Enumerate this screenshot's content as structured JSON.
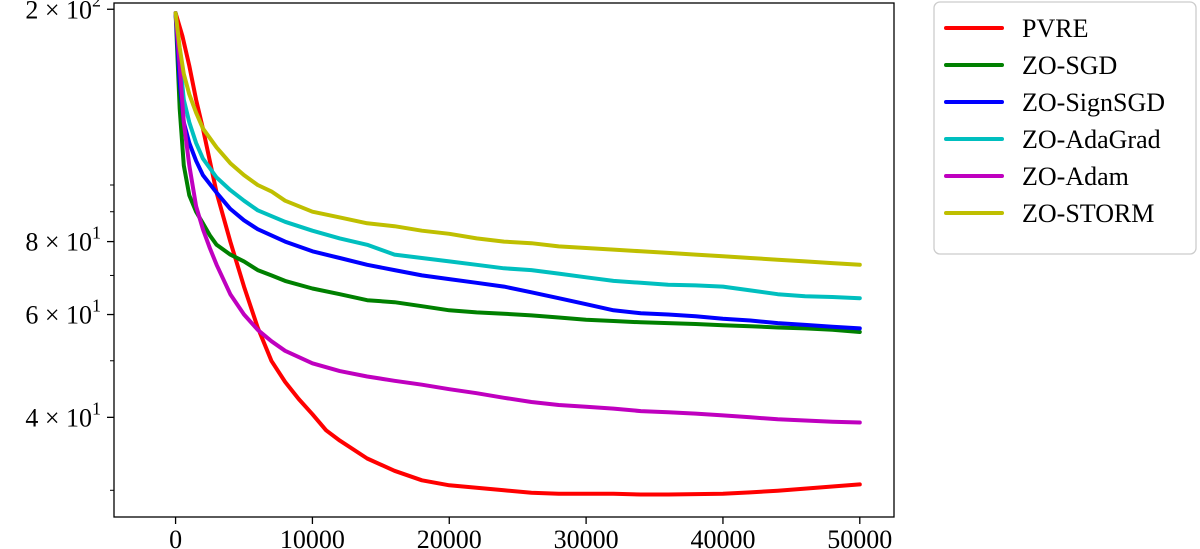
{
  "chart_data": {
    "type": "line",
    "title": "",
    "xlabel": "",
    "ylabel": "",
    "xlim": [
      -4500,
      52500
    ],
    "ylim": [
      27,
      205
    ],
    "yscale": "log",
    "grid": false,
    "legend_position": "outside-right-top",
    "x_ticks": [
      0,
      10000,
      20000,
      30000,
      40000,
      50000
    ],
    "x_tick_labels": [
      "0",
      "10000",
      "20000",
      "30000",
      "40000",
      "50000"
    ],
    "y_major_ticks": [
      {
        "value": 200,
        "base": "2",
        "exp": "2"
      },
      {
        "value": 80,
        "base": "8",
        "exp": "1"
      },
      {
        "value": 60,
        "base": "6",
        "exp": "1"
      },
      {
        "value": 40,
        "base": "4",
        "exp": "1"
      }
    ],
    "y_minor_ticks": [
      30,
      50,
      70,
      90,
      100
    ],
    "series": [
      {
        "name": "PVRE",
        "color": "#ff0000",
        "x": [
          0,
          500,
          1000,
          1500,
          2000,
          2500,
          3000,
          4000,
          5000,
          6000,
          7000,
          8000,
          9000,
          10000,
          11000,
          12000,
          14000,
          16000,
          18000,
          20000,
          22000,
          24000,
          26000,
          28000,
          30000,
          32000,
          34000,
          36000,
          38000,
          40000,
          42000,
          44000,
          46000,
          48000,
          50000
        ],
        "y": [
          197,
          180,
          160,
          140,
          125,
          110,
          97,
          80,
          67,
          57,
          50,
          46,
          43,
          40.5,
          38,
          36.5,
          34,
          32.4,
          31.2,
          30.6,
          30.3,
          30,
          29.7,
          29.6,
          29.6,
          29.6,
          29.5,
          29.5,
          29.55,
          29.6,
          29.75,
          29.95,
          30.2,
          30.45,
          30.7
        ]
      },
      {
        "name": "ZO-SGD",
        "color": "#008000",
        "x": [
          0,
          300,
          600,
          1000,
          1500,
          2000,
          2500,
          3000,
          4000,
          5000,
          6000,
          7000,
          8000,
          10000,
          12000,
          14000,
          16000,
          18000,
          20000,
          22000,
          24000,
          26000,
          28000,
          30000,
          32000,
          34000,
          36000,
          38000,
          40000,
          42000,
          44000,
          46000,
          48000,
          50000
        ],
        "y": [
          197,
          135,
          108,
          96,
          90,
          86,
          82,
          79,
          76,
          74,
          71.5,
          70,
          68.5,
          66.5,
          65,
          63.5,
          63,
          62,
          61,
          60.5,
          60.2,
          59.8,
          59.3,
          58.8,
          58.5,
          58.2,
          58,
          57.8,
          57.5,
          57.3,
          57,
          56.8,
          56.5,
          56
        ]
      },
      {
        "name": "ZO-SignSGD",
        "color": "#0000ff",
        "x": [
          0,
          300,
          600,
          1000,
          1500,
          2000,
          3000,
          4000,
          5000,
          6000,
          8000,
          10000,
          12000,
          14000,
          16000,
          18000,
          20000,
          22000,
          24000,
          26000,
          28000,
          30000,
          32000,
          34000,
          36000,
          38000,
          40000,
          42000,
          44000,
          46000,
          48000,
          50000
        ],
        "y": [
          197,
          150,
          128,
          118,
          110,
          104,
          97,
          91,
          87,
          84,
          80,
          77,
          75,
          73,
          71.5,
          70,
          69,
          68,
          67,
          65.5,
          64,
          62.5,
          61,
          60.3,
          60,
          59.6,
          59,
          58.6,
          58,
          57.6,
          57.2,
          56.8
        ]
      },
      {
        "name": "ZO-AdaGrad",
        "color": "#00bfbf",
        "x": [
          0,
          300,
          600,
          1000,
          1500,
          2000,
          3000,
          4000,
          5000,
          6000,
          8000,
          10000,
          12000,
          14000,
          16000,
          18000,
          20000,
          22000,
          24000,
          26000,
          28000,
          30000,
          32000,
          34000,
          36000,
          38000,
          40000,
          42000,
          44000,
          46000,
          48000,
          50000
        ],
        "y": [
          197,
          165,
          140,
          128,
          118,
          111,
          103,
          98,
          94,
          90.5,
          86.5,
          83.5,
          81,
          79,
          76,
          75,
          74,
          73,
          72,
          71.5,
          70.5,
          69.5,
          68.5,
          68,
          67.5,
          67.3,
          67,
          66,
          65,
          64.5,
          64.3,
          64
        ]
      },
      {
        "name": "ZO-Adam",
        "color": "#bf00bf",
        "x": [
          0,
          300,
          600,
          1000,
          1500,
          2000,
          2500,
          3000,
          4000,
          5000,
          6000,
          7000,
          8000,
          10000,
          12000,
          14000,
          16000,
          18000,
          20000,
          22000,
          24000,
          26000,
          28000,
          30000,
          32000,
          34000,
          36000,
          38000,
          40000,
          42000,
          44000,
          46000,
          48000,
          50000
        ],
        "y": [
          197,
          160,
          128,
          108,
          92,
          84,
          78,
          73,
          65,
          60,
          56.5,
          54,
          52,
          49.5,
          48,
          47,
          46.2,
          45.5,
          44.7,
          44,
          43.2,
          42.5,
          42,
          41.7,
          41.4,
          41,
          40.8,
          40.6,
          40.3,
          40,
          39.7,
          39.5,
          39.3,
          39.2
        ]
      },
      {
        "name": "ZO-STORM",
        "color": "#bfbf00",
        "x": [
          0,
          300,
          600,
          1000,
          1500,
          2000,
          3000,
          4000,
          5000,
          6000,
          7000,
          8000,
          10000,
          12000,
          14000,
          16000,
          18000,
          20000,
          22000,
          24000,
          26000,
          28000,
          30000,
          32000,
          34000,
          36000,
          38000,
          40000,
          42000,
          44000,
          46000,
          48000,
          50000
        ],
        "y": [
          197,
          172,
          155,
          143,
          133,
          125,
          116,
          109,
          104,
          100,
          97.5,
          94,
          90,
          88,
          86,
          85,
          83.5,
          82.5,
          81,
          80,
          79.5,
          78.5,
          78,
          77.5,
          77,
          76.5,
          76,
          75.5,
          75,
          74.5,
          74,
          73.5,
          73
        ]
      }
    ]
  }
}
